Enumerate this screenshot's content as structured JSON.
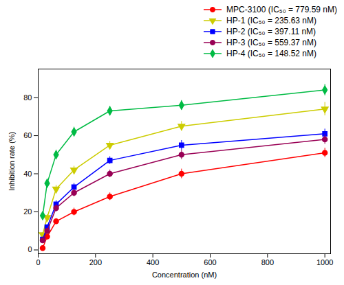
{
  "chart_data": {
    "type": "line",
    "x": [
      15.6,
      31.25,
      62.5,
      125,
      250,
      500,
      1000
    ],
    "series": [
      {
        "name": "MPC-3100 (IC₅₀ = 779.59 nM)",
        "color": "#FF0000",
        "marker": "circle",
        "values": [
          1.0,
          7.0,
          15.0,
          20.0,
          28.0,
          40.0,
          51.0
        ],
        "yerr": [
          0.8,
          1.2,
          1.5,
          2.0,
          2.0,
          2.5,
          2.5
        ]
      },
      {
        "name": "HP-1 (IC₅₀ = 235.63 nM)",
        "color": "#CCCC00",
        "marker": "triangle-down",
        "values": [
          8.0,
          17.0,
          32.0,
          42.0,
          55.0,
          65.0,
          74.0
        ],
        "yerr": [
          1.0,
          1.5,
          2.0,
          2.0,
          2.0,
          2.5,
          3.5
        ]
      },
      {
        "name": "HP-2 (IC₅₀ = 397.11 nM)",
        "color": "#0000FF",
        "marker": "square",
        "values": [
          5.5,
          12.0,
          24.0,
          33.0,
          47.0,
          55.0,
          61.0
        ],
        "yerr": [
          0.8,
          1.2,
          2.0,
          2.0,
          2.0,
          2.5,
          2.5
        ]
      },
      {
        "name": "HP-3 (IC₅₀ = 559.37 nM)",
        "color": "#990055",
        "marker": "circle",
        "values": [
          5.0,
          10.0,
          22.0,
          30.0,
          40.0,
          50.0,
          58.0
        ],
        "yerr": [
          0.8,
          1.2,
          2.0,
          2.0,
          2.0,
          2.5,
          2.5
        ]
      },
      {
        "name": "HP-4 (IC₅₀ = 148.52 nM)",
        "color": "#00BB44",
        "marker": "diamond",
        "values": [
          18.0,
          35.0,
          50.0,
          62.0,
          73.0,
          76.0,
          84.0
        ],
        "yerr": [
          1.5,
          2.0,
          2.5,
          2.5,
          2.5,
          2.5,
          3.0
        ]
      }
    ],
    "xlabel": "Concentration (nM)",
    "ylabel": "Inhibition rate (%)",
    "xlim": [
      0,
      1020
    ],
    "ylim": [
      -2,
      95
    ],
    "xticks": [
      0,
      200,
      400,
      600,
      800,
      1000
    ],
    "yticks": [
      0,
      20,
      40,
      60,
      80
    ],
    "grid": false,
    "legend": "upper right"
  }
}
